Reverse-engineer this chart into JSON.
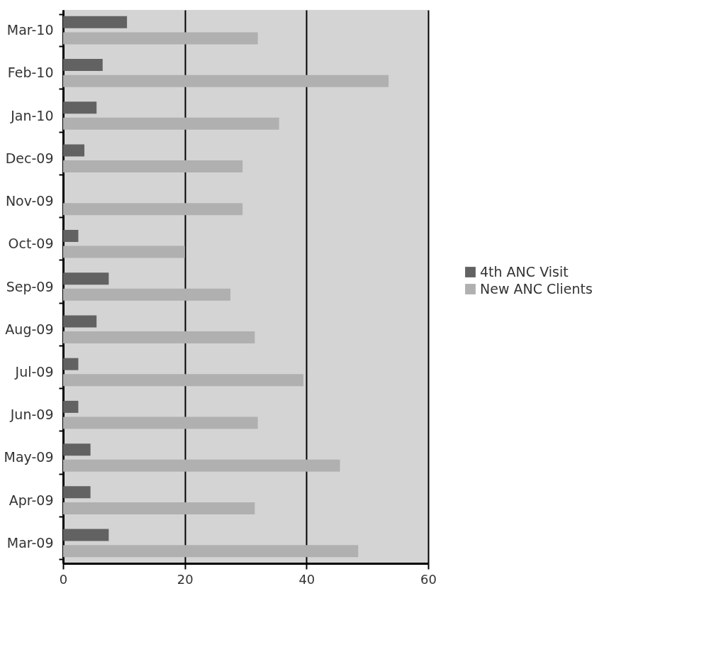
{
  "chart_data": {
    "type": "bar",
    "orientation": "horizontal",
    "categories": [
      "Mar-10",
      "Feb-10",
      "Jan-10",
      "Dec-09",
      "Nov-09",
      "Oct-09",
      "Sep-09",
      "Aug-09",
      "Jul-09",
      "Jun-09",
      "May-09",
      "Apr-09",
      "Mar-09"
    ],
    "series": [
      {
        "name": "4th ANC Visit",
        "color": "#626262",
        "values": [
          10.5,
          6.5,
          5.5,
          3.5,
          0,
          2.5,
          7.5,
          5.5,
          2.5,
          2.5,
          4.5,
          4.5,
          7.5
        ]
      },
      {
        "name": "New ANC Clients",
        "color": "#b0b0b0",
        "values": [
          32,
          53.5,
          35.5,
          29.5,
          29.5,
          20,
          27.5,
          31.5,
          39.5,
          32,
          45.5,
          31.5,
          48.5
        ]
      }
    ],
    "xlim": [
      0,
      60
    ],
    "xticks": [
      0,
      20,
      40,
      60
    ],
    "grid": "x",
    "legend": "right"
  }
}
